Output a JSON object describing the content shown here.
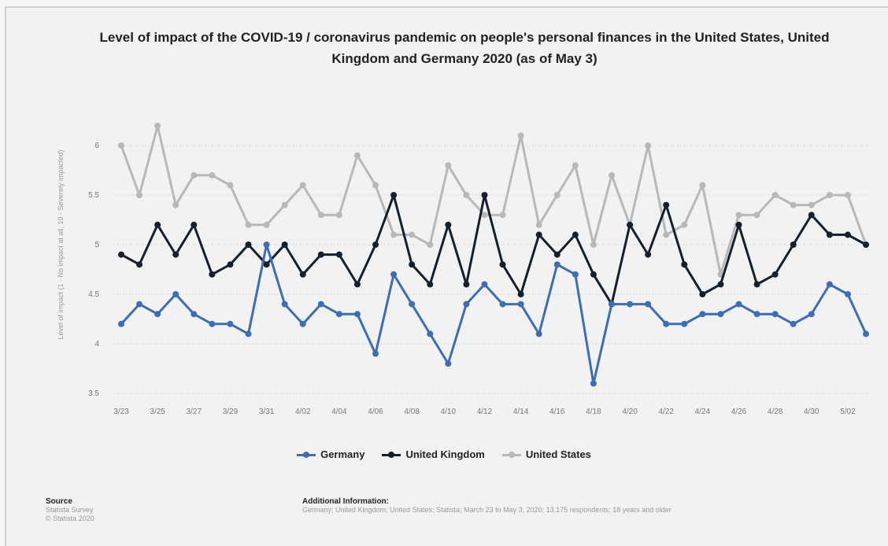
{
  "chart_data": {
    "type": "line",
    "title": "Level of impact of the COVID-19 / coronavirus pandemic on people's personal finances in the United States, United Kingdom and Germany 2020 (as of May 3)",
    "ylabel": "Level of impact (1 - No impact at all, 10 - Severely impacted)",
    "xlabel": "",
    "ylim": [
      3.5,
      6.5
    ],
    "yticks": [
      3.5,
      4,
      4.5,
      5,
      5.5,
      6
    ],
    "ytick_labels": [
      "3.5",
      "4",
      "4.5",
      "5",
      "5.5",
      "6"
    ],
    "grid": true,
    "legend": "bottom",
    "x": [
      "3/23",
      "3/24",
      "3/25",
      "3/26",
      "3/27",
      "3/28",
      "3/29",
      "3/30",
      "3/31",
      "4/01",
      "4/02",
      "4/03",
      "4/04",
      "4/05",
      "4/06",
      "4/07",
      "4/08",
      "4/09",
      "4/10",
      "4/11",
      "4/12",
      "4/13",
      "4/14",
      "4/15",
      "4/16",
      "4/17",
      "4/18",
      "4/19",
      "4/20",
      "4/21",
      "4/22",
      "4/23",
      "4/24",
      "4/25",
      "4/26",
      "4/27",
      "4/28",
      "4/29",
      "4/30",
      "5/01",
      "5/02",
      "5/03"
    ],
    "xtick_labels": [
      "3/23",
      "3/25",
      "3/27",
      "3/29",
      "3/31",
      "4/02",
      "4/04",
      "4/06",
      "4/08",
      "4/10",
      "4/12",
      "4/14",
      "4/16",
      "4/18",
      "4/20",
      "4/22",
      "4/24",
      "4/26",
      "4/28",
      "4/30",
      "5/02"
    ],
    "series": [
      {
        "name": "Germany",
        "color": "#3d6db5",
        "values": [
          4.2,
          4.4,
          4.3,
          4.5,
          4.3,
          4.2,
          4.2,
          4.1,
          5.0,
          4.4,
          4.2,
          4.4,
          4.3,
          4.3,
          3.9,
          4.7,
          4.4,
          4.1,
          3.8,
          4.4,
          4.6,
          4.4,
          4.4,
          4.1,
          4.8,
          4.7,
          3.6,
          4.4,
          4.4,
          4.4,
          4.2,
          4.2,
          4.3,
          4.3,
          4.4,
          4.3,
          4.3,
          4.2,
          4.3,
          4.6,
          4.5,
          4.1
        ]
      },
      {
        "name": "United Kingdom",
        "color": "#14202e",
        "values": [
          4.9,
          4.8,
          5.2,
          4.9,
          5.2,
          4.7,
          4.8,
          5.0,
          4.8,
          5.0,
          4.7,
          4.9,
          4.9,
          4.6,
          5.0,
          5.5,
          4.8,
          4.6,
          5.2,
          4.6,
          5.5,
          4.8,
          4.5,
          5.1,
          4.9,
          5.1,
          4.7,
          4.4,
          5.2,
          4.9,
          5.4,
          4.8,
          4.5,
          4.6,
          5.2,
          4.6,
          4.7,
          5.0,
          5.3,
          5.1,
          5.1,
          5.0
        ]
      },
      {
        "name": "United States",
        "color": "#b8b8b8",
        "values": [
          6.0,
          5.5,
          6.2,
          5.4,
          5.7,
          5.7,
          5.6,
          5.2,
          5.2,
          5.4,
          5.6,
          5.3,
          5.3,
          5.9,
          5.6,
          5.1,
          5.1,
          5.0,
          5.8,
          5.5,
          5.3,
          5.3,
          6.1,
          5.2,
          5.5,
          5.8,
          5.0,
          5.7,
          5.2,
          6.0,
          5.1,
          5.2,
          5.6,
          4.7,
          5.3,
          5.3,
          5.5,
          5.4,
          5.4,
          5.5,
          5.5,
          5.0
        ]
      }
    ]
  },
  "source": {
    "heading": "Source",
    "lines": [
      "Statista Survey",
      "© Statista 2020"
    ]
  },
  "additional_info": {
    "heading": "Additional Information:",
    "text": "Germany; United Kingdom; United States; Statista; March 23 to May 3, 2020; 13,175 respondents; 18 years and older"
  }
}
